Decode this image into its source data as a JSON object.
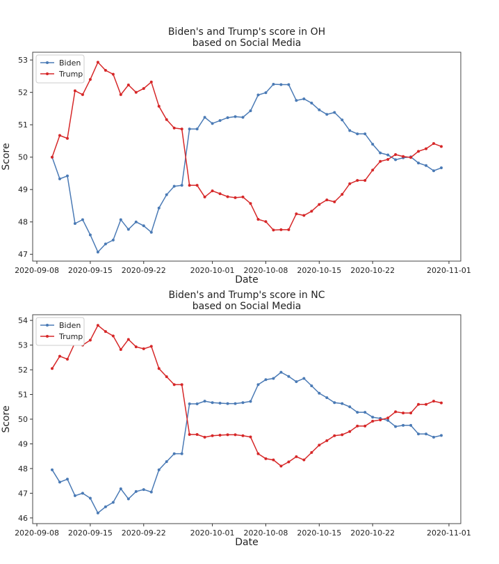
{
  "chart_data": [
    {
      "type": "line",
      "title": "Biden's and Trump's score in OH\nbased on Social Media",
      "xlabel": "Date",
      "ylabel": "Score",
      "x_start": "2020-09-10",
      "x_end": "2020-10-31",
      "x_step": "1 day",
      "xticks": [
        "2020-09-08",
        "2020-09-15",
        "2020-09-22",
        "2020-10-01",
        "2020-10-08",
        "2020-10-15",
        "2020-10-22",
        "2020-11-01"
      ],
      "yticks": [
        47,
        48,
        49,
        50,
        51,
        52,
        53
      ],
      "ylim": [
        46.79,
        53.24
      ],
      "grid": false,
      "legend": "upper-left",
      "series": [
        {
          "name": "Biden",
          "color": "#4a7ab5",
          "values": [
            50.0,
            49.33,
            49.42,
            47.95,
            48.07,
            47.6,
            47.07,
            47.32,
            47.44,
            48.07,
            47.77,
            48.0,
            47.88,
            47.68,
            48.43,
            48.84,
            49.1,
            49.13,
            50.87,
            50.87,
            51.23,
            51.04,
            51.13,
            51.22,
            51.25,
            51.23,
            51.43,
            51.92,
            51.99,
            52.25,
            52.24,
            52.24,
            51.75,
            51.8,
            51.67,
            51.46,
            51.32,
            51.38,
            51.15,
            50.82,
            50.72,
            50.72,
            50.4,
            50.13,
            50.07,
            49.92,
            49.98,
            50.01,
            49.82,
            49.74,
            49.58,
            49.67
          ]
        },
        {
          "name": "Trump",
          "color": "#d62728",
          "values": [
            50.0,
            50.67,
            50.58,
            52.05,
            51.93,
            52.4,
            52.93,
            52.68,
            52.56,
            51.93,
            52.23,
            52.0,
            52.12,
            52.32,
            51.57,
            51.16,
            50.9,
            50.87,
            49.13,
            49.13,
            48.77,
            48.96,
            48.87,
            48.78,
            48.75,
            48.77,
            48.57,
            48.08,
            48.01,
            47.75,
            47.76,
            47.76,
            48.25,
            48.2,
            48.33,
            48.54,
            48.68,
            48.62,
            48.85,
            49.18,
            49.28,
            49.28,
            49.6,
            49.87,
            49.93,
            50.08,
            50.02,
            49.99,
            50.18,
            50.26,
            50.42,
            50.33
          ]
        }
      ]
    },
    {
      "type": "line",
      "title": "Biden's and Trump's score in NC\nbased on Social Media",
      "xlabel": "Date",
      "ylabel": "Score",
      "x_start": "2020-09-10",
      "x_end": "2020-10-31",
      "x_step": "1 day",
      "xticks": [
        "2020-09-08",
        "2020-09-15",
        "2020-09-22",
        "2020-10-01",
        "2020-10-08",
        "2020-10-15",
        "2020-10-22",
        "2020-11-01"
      ],
      "yticks": [
        46,
        47,
        48,
        49,
        50,
        51,
        52,
        53,
        54
      ],
      "ylim": [
        45.77,
        54.23
      ],
      "grid": false,
      "legend": "upper-left",
      "series": [
        {
          "name": "Biden",
          "color": "#4a7ab5",
          "values": [
            47.95,
            47.45,
            47.57,
            46.9,
            47.0,
            46.8,
            46.2,
            46.45,
            46.63,
            47.18,
            46.77,
            47.07,
            47.15,
            47.05,
            47.95,
            48.28,
            48.6,
            48.6,
            50.62,
            50.62,
            50.73,
            50.67,
            50.65,
            50.63,
            50.63,
            50.67,
            50.72,
            51.4,
            51.6,
            51.65,
            51.9,
            51.73,
            51.52,
            51.65,
            51.35,
            51.05,
            50.87,
            50.67,
            50.63,
            50.5,
            50.28,
            50.28,
            50.08,
            50.03,
            49.95,
            49.7,
            49.75,
            49.75,
            49.4,
            49.4,
            49.27,
            49.34
          ]
        },
        {
          "name": "Trump",
          "color": "#d62728",
          "values": [
            52.05,
            52.55,
            52.43,
            53.1,
            53.0,
            53.2,
            53.8,
            53.55,
            53.37,
            52.82,
            53.23,
            52.93,
            52.85,
            52.95,
            52.05,
            51.72,
            51.4,
            51.4,
            49.38,
            49.38,
            49.27,
            49.33,
            49.35,
            49.37,
            49.37,
            49.33,
            49.28,
            48.6,
            48.4,
            48.35,
            48.1,
            48.27,
            48.48,
            48.35,
            48.65,
            48.95,
            49.13,
            49.33,
            49.37,
            49.5,
            49.72,
            49.72,
            49.92,
            49.97,
            50.05,
            50.3,
            50.25,
            50.25,
            50.6,
            50.6,
            50.73,
            50.66
          ]
        }
      ]
    }
  ]
}
